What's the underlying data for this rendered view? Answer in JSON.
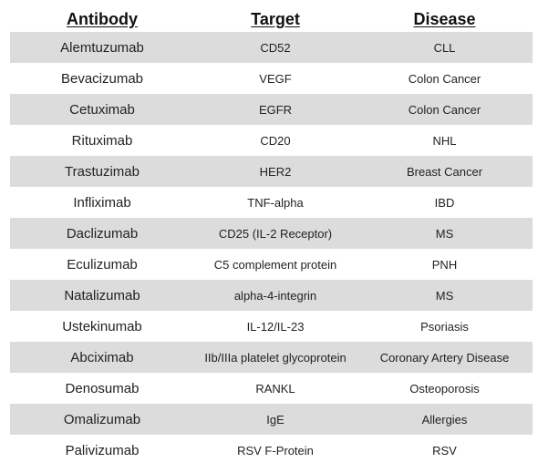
{
  "headers": {
    "antibody": "Antibody",
    "target": "Target",
    "disease": "Disease"
  },
  "rows": [
    {
      "antibody": "Alemtuzumab",
      "target": "CD52",
      "disease": "CLL"
    },
    {
      "antibody": "Bevacizumab",
      "target": "VEGF",
      "disease": "Colon Cancer"
    },
    {
      "antibody": "Cetuximab",
      "target": "EGFR",
      "disease": "Colon Cancer"
    },
    {
      "antibody": "Rituximab",
      "target": "CD20",
      "disease": "NHL"
    },
    {
      "antibody": "Trastuzimab",
      "target": "HER2",
      "disease": "Breast Cancer"
    },
    {
      "antibody": "Infliximab",
      "target": "TNF-alpha",
      "disease": "IBD"
    },
    {
      "antibody": "Daclizumab",
      "target": "CD25 (IL-2 Receptor)",
      "disease": "MS"
    },
    {
      "antibody": "Eculizumab",
      "target": "C5 complement protein",
      "disease": "PNH"
    },
    {
      "antibody": "Natalizumab",
      "target": "alpha-4-integrin",
      "disease": "MS"
    },
    {
      "antibody": "Ustekinumab",
      "target": "IL-12/IL-23",
      "disease": "Psoriasis"
    },
    {
      "antibody": "Abciximab",
      "target": "IIb/IIIa platelet glycoprotein",
      "disease": "Coronary Artery Disease"
    },
    {
      "antibody": "Denosumab",
      "target": "RANKL",
      "disease": "Osteoporosis"
    },
    {
      "antibody": "Omalizumab",
      "target": "IgE",
      "disease": "Allergies"
    },
    {
      "antibody": "Palivizumab",
      "target": "RSV F-Protein",
      "disease": "RSV"
    }
  ],
  "colors": {
    "shaded_row": "#dcdcdc",
    "background": "#ffffff",
    "text": "#222222"
  }
}
